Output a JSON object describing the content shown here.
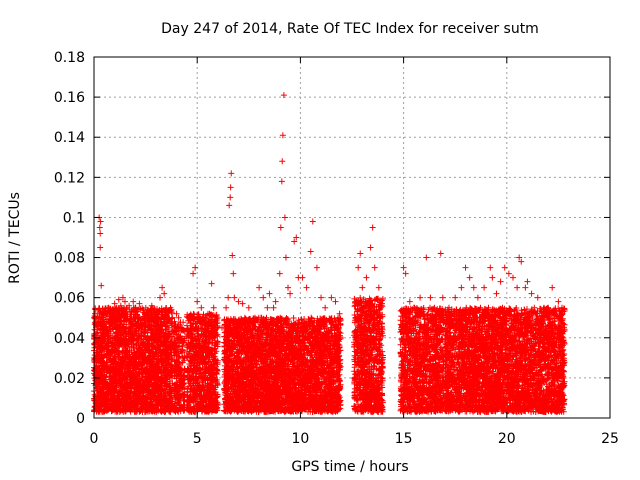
{
  "chart_data": {
    "type": "scatter",
    "title": "Day 247 of 2014, Rate Of TEC Index for receiver sutm",
    "xlabel": "GPS time / hours",
    "ylabel": "ROTI / TECUs",
    "xlim": [
      0,
      25
    ],
    "ylim": [
      0,
      0.18
    ],
    "x_ticks": [
      0,
      5,
      10,
      15,
      20,
      25
    ],
    "x_tick_labels": [
      "0",
      "5",
      "10",
      "15",
      "20",
      "25"
    ],
    "y_ticks": [
      0,
      0.02,
      0.04,
      0.06,
      0.08,
      0.1,
      0.12,
      0.14,
      0.16,
      0.18
    ],
    "y_tick_labels": [
      "0",
      "0.02",
      "0.04",
      "0.06",
      "0.08",
      "0.1",
      "0.12",
      "0.14",
      "0.16",
      "0.18"
    ],
    "grid": true,
    "marker": "+",
    "series": [
      {
        "name": "ROTI",
        "color": "#ff0000",
        "points": [
          [
            0.05,
            0.052
          ],
          [
            0.1,
            0.042
          ],
          [
            0.15,
            0.035
          ],
          [
            0.2,
            0.03
          ],
          [
            0.25,
            0.1
          ],
          [
            0.28,
            0.095
          ],
          [
            0.3,
            0.092
          ],
          [
            0.32,
            0.098
          ],
          [
            0.3,
            0.085
          ],
          [
            0.35,
            0.066
          ],
          [
            0.4,
            0.05
          ],
          [
            0.5,
            0.048
          ],
          [
            0.6,
            0.045
          ],
          [
            0.7,
            0.055
          ],
          [
            0.8,
            0.052
          ],
          [
            0.9,
            0.05
          ],
          [
            1.0,
            0.057
          ],
          [
            1.1,
            0.055
          ],
          [
            1.2,
            0.059
          ],
          [
            1.3,
            0.056
          ],
          [
            1.4,
            0.06
          ],
          [
            1.5,
            0.058
          ],
          [
            1.6,
            0.055
          ],
          [
            1.7,
            0.056
          ],
          [
            1.8,
            0.053
          ],
          [
            1.9,
            0.058
          ],
          [
            2.0,
            0.055
          ],
          [
            2.2,
            0.057
          ],
          [
            2.4,
            0.054
          ],
          [
            2.6,
            0.052
          ],
          [
            2.8,
            0.056
          ],
          [
            3.0,
            0.053
          ],
          [
            3.2,
            0.06
          ],
          [
            3.3,
            0.065
          ],
          [
            3.4,
            0.062
          ],
          [
            3.5,
            0.05
          ],
          [
            3.6,
            0.045
          ],
          [
            3.9,
            0.048
          ],
          [
            4.0,
            0.052
          ],
          [
            4.1,
            0.05
          ],
          [
            4.2,
            0.045
          ],
          [
            4.6,
            0.04
          ],
          [
            4.8,
            0.072
          ],
          [
            4.9,
            0.075
          ],
          [
            5.0,
            0.058
          ],
          [
            5.2,
            0.055
          ],
          [
            5.4,
            0.05
          ],
          [
            5.6,
            0.052
          ],
          [
            5.7,
            0.067
          ],
          [
            5.8,
            0.055
          ],
          [
            5.9,
            0.045
          ],
          [
            6.2,
            0.045
          ],
          [
            6.4,
            0.055
          ],
          [
            6.5,
            0.06
          ],
          [
            6.55,
            0.106
          ],
          [
            6.6,
            0.11
          ],
          [
            6.62,
            0.115
          ],
          [
            6.65,
            0.122
          ],
          [
            6.7,
            0.081
          ],
          [
            6.75,
            0.072
          ],
          [
            6.8,
            0.06
          ],
          [
            7.0,
            0.058
          ],
          [
            7.2,
            0.057
          ],
          [
            7.5,
            0.055
          ],
          [
            7.8,
            0.05
          ],
          [
            8.0,
            0.065
          ],
          [
            8.2,
            0.06
          ],
          [
            8.4,
            0.055
          ],
          [
            8.5,
            0.062
          ],
          [
            8.7,
            0.055
          ],
          [
            8.8,
            0.058
          ],
          [
            9.0,
            0.072
          ],
          [
            9.05,
            0.095
          ],
          [
            9.1,
            0.118
          ],
          [
            9.12,
            0.128
          ],
          [
            9.15,
            0.141
          ],
          [
            9.2,
            0.161
          ],
          [
            9.25,
            0.1
          ],
          [
            9.3,
            0.08
          ],
          [
            9.4,
            0.065
          ],
          [
            9.5,
            0.062
          ],
          [
            9.7,
            0.088
          ],
          [
            9.8,
            0.09
          ],
          [
            9.9,
            0.07
          ],
          [
            10.1,
            0.07
          ],
          [
            10.3,
            0.065
          ],
          [
            10.5,
            0.083
          ],
          [
            10.6,
            0.098
          ],
          [
            10.8,
            0.075
          ],
          [
            11.0,
            0.06
          ],
          [
            11.2,
            0.055
          ],
          [
            11.5,
            0.06
          ],
          [
            11.7,
            0.058
          ],
          [
            11.9,
            0.052
          ],
          [
            12.8,
            0.075
          ],
          [
            12.9,
            0.082
          ],
          [
            13.0,
            0.065
          ],
          [
            13.2,
            0.07
          ],
          [
            13.4,
            0.085
          ],
          [
            13.5,
            0.095
          ],
          [
            13.6,
            0.075
          ],
          [
            13.8,
            0.065
          ],
          [
            13.9,
            0.055
          ],
          [
            15.0,
            0.075
          ],
          [
            15.1,
            0.072
          ],
          [
            15.3,
            0.058
          ],
          [
            15.5,
            0.055
          ],
          [
            15.8,
            0.06
          ],
          [
            16.1,
            0.08
          ],
          [
            16.3,
            0.06
          ],
          [
            16.5,
            0.055
          ],
          [
            16.8,
            0.082
          ],
          [
            16.9,
            0.06
          ],
          [
            17.2,
            0.055
          ],
          [
            17.5,
            0.06
          ],
          [
            17.8,
            0.065
          ],
          [
            18.0,
            0.075
          ],
          [
            18.2,
            0.07
          ],
          [
            18.4,
            0.065
          ],
          [
            18.6,
            0.06
          ],
          [
            18.9,
            0.065
          ],
          [
            19.2,
            0.075
          ],
          [
            19.3,
            0.07
          ],
          [
            19.5,
            0.062
          ],
          [
            19.7,
            0.068
          ],
          [
            19.9,
            0.075
          ],
          [
            20.1,
            0.072
          ],
          [
            20.3,
            0.07
          ],
          [
            20.5,
            0.065
          ],
          [
            20.6,
            0.08
          ],
          [
            20.7,
            0.078
          ],
          [
            20.9,
            0.065
          ],
          [
            21.0,
            0.068
          ],
          [
            21.2,
            0.062
          ],
          [
            21.5,
            0.06
          ],
          [
            21.8,
            0.055
          ],
          [
            22.0,
            0.055
          ],
          [
            22.2,
            0.065
          ],
          [
            22.5,
            0.058
          ],
          [
            22.7,
            0.052
          ]
        ],
        "bands": [
          {
            "x": [
              0.0,
              3.8
            ],
            "y": [
              0.003,
              0.055
            ],
            "n": 2600
          },
          {
            "x": [
              3.85,
              4.4
            ],
            "y": [
              0.003,
              0.048
            ],
            "n": 250
          },
          {
            "x": [
              4.5,
              6.0
            ],
            "y": [
              0.003,
              0.052
            ],
            "n": 900
          },
          {
            "x": [
              6.3,
              11.95
            ],
            "y": [
              0.003,
              0.05
            ],
            "n": 3800
          },
          {
            "x": [
              12.6,
              14.0
            ],
            "y": [
              0.003,
              0.06
            ],
            "n": 950
          },
          {
            "x": [
              14.85,
              16.95
            ],
            "y": [
              0.003,
              0.055
            ],
            "n": 1300
          },
          {
            "x": [
              17.0,
              22.8
            ],
            "y": [
              0.003,
              0.055
            ],
            "n": 3800
          }
        ]
      }
    ]
  }
}
